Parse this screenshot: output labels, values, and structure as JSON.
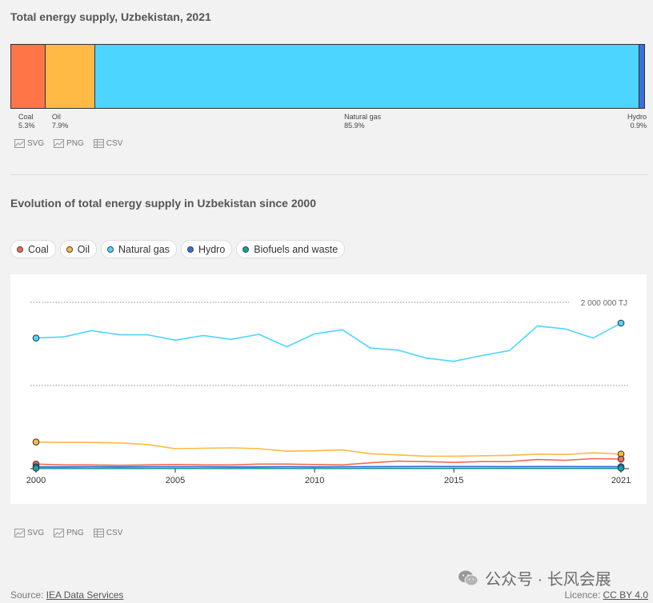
{
  "chart1": {
    "title": "Total energy supply, Uzbekistan, 2021",
    "segments": [
      {
        "name": "Coal",
        "pct_label": "5.3%",
        "value": 5.3,
        "color": "#ff7547"
      },
      {
        "name": "Oil",
        "pct_label": "7.9%",
        "value": 7.9,
        "color": "#ffb944"
      },
      {
        "name": "Natural gas",
        "pct_label": "85.9%",
        "value": 85.9,
        "color": "#4cd5ff"
      },
      {
        "name": "Hydro",
        "pct_label": "0.9%",
        "value": 0.9,
        "color": "#3a6fd8"
      }
    ],
    "downloads": [
      "SVG",
      "PNG",
      "CSV"
    ]
  },
  "chart2": {
    "title": "Evolution of total energy supply in Uzbekistan since 2000",
    "legend": [
      {
        "name": "Coal",
        "color": "#f26b50"
      },
      {
        "name": "Oil",
        "color": "#ffb944"
      },
      {
        "name": "Natural gas",
        "color": "#4cd5ff"
      },
      {
        "name": "Hydro",
        "color": "#3a6fd8"
      },
      {
        "name": "Biofuels and waste",
        "color": "#14a3a0"
      }
    ],
    "gridline_label": "2 000 000 TJ",
    "downloads": [
      "SVG",
      "PNG",
      "CSV"
    ]
  },
  "chart_data": [
    {
      "type": "bar",
      "title": "Total energy supply, Uzbekistan, 2021",
      "categories": [
        "Coal",
        "Oil",
        "Natural gas",
        "Hydro"
      ],
      "values": [
        5.3,
        7.9,
        85.9,
        0.9
      ],
      "unit": "%"
    },
    {
      "type": "line",
      "title": "Evolution of total energy supply in Uzbekistan since 2000",
      "x": [
        2000,
        2001,
        2002,
        2003,
        2004,
        2005,
        2006,
        2007,
        2008,
        2009,
        2010,
        2011,
        2012,
        2013,
        2014,
        2015,
        2016,
        2017,
        2018,
        2019,
        2020,
        2021
      ],
      "x_ticks": [
        "2000",
        "2005",
        "2010",
        "2015",
        "2021"
      ],
      "ylim": [
        0,
        2000000
      ],
      "y_unit": "TJ",
      "grid": true,
      "series": [
        {
          "name": "Coal",
          "color": "#f26b50",
          "values": [
            55000,
            45000,
            45000,
            40000,
            45000,
            50000,
            45000,
            45000,
            55000,
            55000,
            50000,
            45000,
            70000,
            90000,
            85000,
            75000,
            85000,
            85000,
            110000,
            100000,
            120000,
            115000
          ]
        },
        {
          "name": "Oil",
          "color": "#ffb944",
          "values": [
            320000,
            315000,
            315000,
            310000,
            290000,
            240000,
            245000,
            250000,
            240000,
            210000,
            215000,
            225000,
            180000,
            165000,
            150000,
            150000,
            155000,
            160000,
            175000,
            170000,
            190000,
            175000
          ]
        },
        {
          "name": "Natural gas",
          "color": "#4cd5ff",
          "values": [
            1570000,
            1585000,
            1660000,
            1610000,
            1610000,
            1545000,
            1600000,
            1555000,
            1615000,
            1465000,
            1620000,
            1670000,
            1450000,
            1425000,
            1330000,
            1290000,
            1360000,
            1420000,
            1715000,
            1680000,
            1570000,
            1750000
          ]
        },
        {
          "name": "Hydro",
          "color": "#3a6fd8",
          "values": [
            22000,
            22000,
            24000,
            22000,
            24000,
            24000,
            24000,
            22000,
            22000,
            24000,
            22000,
            24000,
            25000,
            26000,
            27000,
            26000,
            26000,
            25000,
            26000,
            26000,
            25000,
            24000
          ]
        },
        {
          "name": "Biofuels and waste",
          "color": "#14a3a0",
          "values": [
            6000,
            6000,
            6000,
            6000,
            6000,
            6000,
            6000,
            6000,
            6000,
            6000,
            6000,
            6000,
            6000,
            6000,
            6000,
            6000,
            6000,
            6000,
            6000,
            6000,
            6000,
            6000
          ]
        }
      ]
    }
  ],
  "footer": {
    "source_prefix": "Source: ",
    "source_link": "IEA Data Services",
    "licence_prefix": "Licence: ",
    "licence_link": "CC BY 4.0",
    "watermark": "公众号 · 长风会展"
  }
}
